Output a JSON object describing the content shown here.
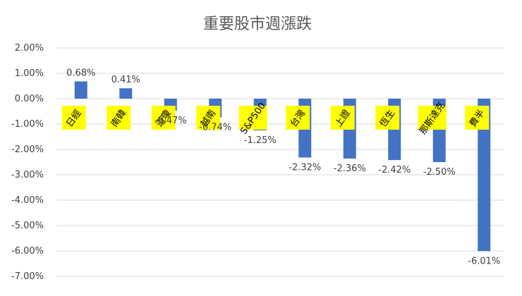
{
  "chart_data": {
    "type": "bar",
    "title": "重要股市週漲跌",
    "xlabel": "",
    "ylabel": "",
    "ylim": [
      -0.07,
      0.02
    ],
    "yticks": [
      "2.00%",
      "1.00%",
      "0.00%",
      "-1.00%",
      "-2.00%",
      "-3.00%",
      "-4.00%",
      "-5.00%",
      "-6.00%",
      "-7.00%"
    ],
    "grid": true,
    "categories": [
      "日經",
      "南韓",
      "道瓊",
      "越南",
      "S&P500",
      "台灣",
      "上證",
      "恆生",
      "那斯達克",
      "費半"
    ],
    "values": [
      0.0068,
      0.0041,
      -0.0047,
      -0.0074,
      -0.0125,
      -0.0232,
      -0.0236,
      -0.0242,
      -0.025,
      -0.0601
    ],
    "data_labels": [
      "0.68%",
      "0.41%",
      "-0.47%",
      "-0.74%",
      "-1.25%",
      "-2.32%",
      "-2.36%",
      "-2.42%",
      "-2.50%",
      "-6.01%"
    ]
  },
  "colors": {
    "bar": "#4472c4",
    "category_label_bg": "#ffff00",
    "grid": "#d9d9d9",
    "text": "#404040",
    "title": "#595959"
  }
}
